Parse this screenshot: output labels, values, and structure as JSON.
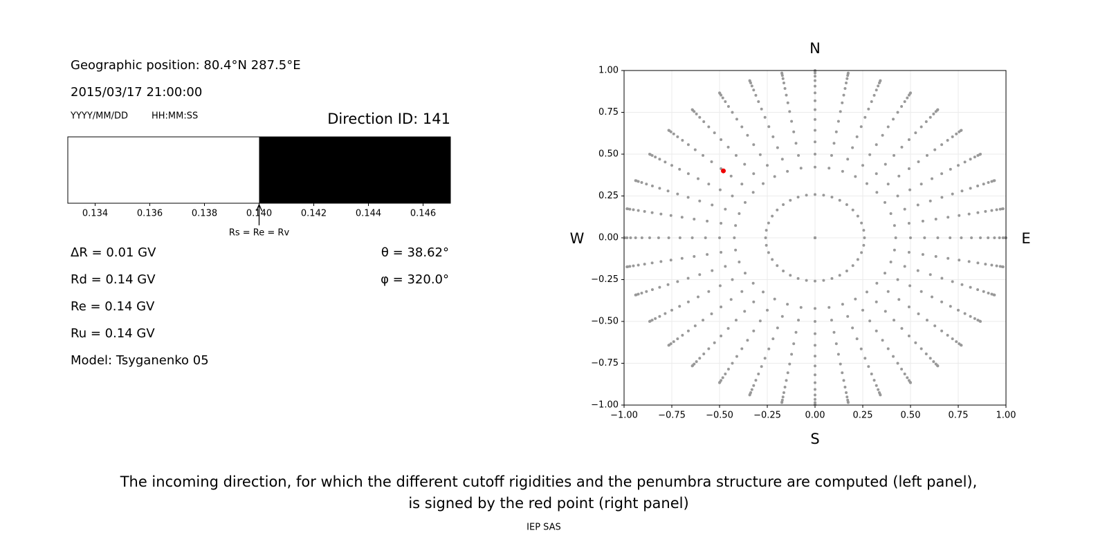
{
  "info": {
    "position": "Geographic position: 80.4°N 287.5°E",
    "datetime": "2015/03/17 21:00:00",
    "date_format": "YYYY/MM/DD",
    "time_format": "HH:MM:SS",
    "direction_id": "Direction ID: 141",
    "rigidities": [
      "ΔR = 0.01 GV",
      "Rd = 0.14 GV",
      "Re = 0.14 GV",
      "Ru = 0.14 GV"
    ],
    "model": "Model: Tsyganenko 05",
    "angles": [
      "θ = 38.62°",
      "φ = 320.0°"
    ]
  },
  "chart_data": [
    {
      "type": "penumbra",
      "xlim": [
        0.133,
        0.147
      ],
      "xticks": [
        0.134,
        0.136,
        0.138,
        {
          "value": 0.14,
          "label": "0.140"
        },
        0.142,
        0.144,
        0.146
      ],
      "cutoff": 0.14,
      "allowed_color": "#ffffff",
      "forbidden_color": "#000000",
      "cutoff_label": "Rs = Re = Rv"
    },
    {
      "type": "directions",
      "xlim": [
        -1,
        1
      ],
      "ylim": [
        -1,
        1
      ],
      "xticks": [
        {
          "value": -1,
          "label": "−1.00"
        },
        {
          "value": -0.75,
          "label": "−0.75"
        },
        {
          "value": -0.5,
          "label": "−0.50"
        },
        {
          "value": -0.25,
          "label": "−0.25"
        },
        {
          "value": 0,
          "label": "0.00"
        },
        {
          "value": 0.25,
          "label": "0.25"
        },
        {
          "value": 0.5,
          "label": "0.50"
        },
        {
          "value": 0.75,
          "label": "0.75"
        },
        {
          "value": 1,
          "label": "1.00"
        }
      ],
      "yticks": [
        {
          "value": -1,
          "label": "−1.00"
        },
        {
          "value": -0.75,
          "label": "−0.75"
        },
        {
          "value": -0.5,
          "label": "−0.50"
        },
        {
          "value": -0.25,
          "label": "−0.25"
        },
        {
          "value": 0,
          "label": "0.00"
        },
        {
          "value": 0.25,
          "label": "0.25"
        },
        {
          "value": 0.5,
          "label": "0.50"
        },
        {
          "value": 0.75,
          "label": "0.75"
        },
        {
          "value": 1,
          "label": "1.00"
        }
      ],
      "grid": true,
      "compass": {
        "north": "N",
        "south": "S",
        "west": "W",
        "east": "E"
      },
      "directions": {
        "theta": [
          0,
          15,
          25,
          30,
          35,
          40,
          45,
          50,
          55,
          60,
          65,
          70,
          75,
          80,
          85,
          90
        ],
        "phi": [
          0,
          10,
          20,
          30,
          40,
          50,
          60,
          70,
          80,
          90,
          100,
          110,
          120,
          130,
          140,
          150,
          160,
          170,
          180,
          190,
          200,
          210,
          220,
          230,
          240,
          250,
          260,
          270,
          280,
          290,
          300,
          310,
          320,
          330,
          340,
          350
        ],
        "color": "#999999"
      },
      "highlight": {
        "x": -0.48,
        "y": 0.4,
        "color": "#ee0000"
      }
    }
  ],
  "caption": [
    "The incoming direction, for which the different cutoff rigidities and the penumbra structure are computed (left panel),",
    "is signed by the red point (right panel)"
  ],
  "footer": "IEP SAS"
}
